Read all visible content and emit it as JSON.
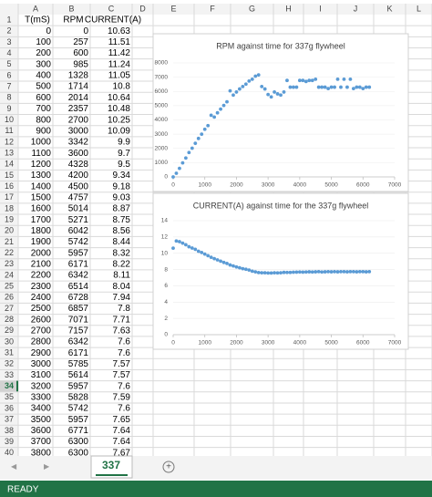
{
  "column_headers": [
    "A",
    "B",
    "C",
    "D",
    "E",
    "F",
    "G",
    "H",
    "I",
    "J",
    "K",
    "L"
  ],
  "row_numbers": [
    1,
    2,
    3,
    4,
    5,
    6,
    7,
    8,
    9,
    10,
    11,
    12,
    13,
    14,
    15,
    16,
    17,
    18,
    19,
    20,
    21,
    22,
    23,
    24,
    25,
    26,
    27,
    28,
    29,
    30,
    31,
    32,
    33,
    34,
    35,
    36,
    37,
    38,
    39,
    40
  ],
  "selected_row": 34,
  "table": {
    "header": [
      "T(mS)",
      "RPM",
      "CURRENT(A)"
    ],
    "rows": [
      [
        0,
        0,
        10.63
      ],
      [
        100,
        257,
        11.51
      ],
      [
        200,
        600,
        11.42
      ],
      [
        300,
        985,
        11.24
      ],
      [
        400,
        1328,
        11.05
      ],
      [
        500,
        1714,
        10.8
      ],
      [
        600,
        2014,
        10.64
      ],
      [
        700,
        2357,
        10.48
      ],
      [
        800,
        2700,
        10.25
      ],
      [
        900,
        3000,
        10.09
      ],
      [
        1000,
        3342,
        9.9
      ],
      [
        1100,
        3600,
        9.7
      ],
      [
        1200,
        4328,
        9.5
      ],
      [
        1300,
        4200,
        9.34
      ],
      [
        1400,
        4500,
        9.18
      ],
      [
        1500,
        4757,
        9.03
      ],
      [
        1600,
        5014,
        8.87
      ],
      [
        1700,
        5271,
        8.75
      ],
      [
        1800,
        6042,
        8.56
      ],
      [
        1900,
        5742,
        8.44
      ],
      [
        2000,
        5957,
        8.32
      ],
      [
        2100,
        6171,
        8.22
      ],
      [
        2200,
        6342,
        8.11
      ],
      [
        2300,
        6514,
        8.04
      ],
      [
        2400,
        6728,
        7.94
      ],
      [
        2500,
        6857,
        7.8
      ],
      [
        2600,
        7071,
        7.71
      ],
      [
        2700,
        7157,
        7.63
      ],
      [
        2800,
        6342,
        7.6
      ],
      [
        2900,
        6171,
        7.6
      ],
      [
        3000,
        5785,
        7.57
      ],
      [
        3100,
        5614,
        7.57
      ],
      [
        3200,
        5957,
        7.6
      ],
      [
        3300,
        5828,
        7.59
      ],
      [
        3400,
        5742,
        7.6
      ],
      [
        3500,
        5957,
        7.65
      ],
      [
        3600,
        6771,
        7.64
      ],
      [
        3700,
        6300,
        7.64
      ],
      [
        3800,
        6300,
        7.67
      ]
    ]
  },
  "chart_data": [
    {
      "type": "scatter",
      "title": "RPM against time for 337g flywheel",
      "color": "#5b9bd5",
      "x": [
        0,
        100,
        200,
        300,
        400,
        500,
        600,
        700,
        800,
        900,
        1000,
        1100,
        1200,
        1300,
        1400,
        1500,
        1600,
        1700,
        1800,
        1900,
        2000,
        2100,
        2200,
        2300,
        2400,
        2500,
        2600,
        2700,
        2800,
        2900,
        3000,
        3100,
        3200,
        3300,
        3400,
        3500,
        3600,
        3700,
        3800,
        3900,
        4000,
        4100,
        4200,
        4300,
        4400,
        4500,
        4600,
        4700,
        4800,
        4900,
        5000,
        5100,
        5200,
        5300,
        5400,
        5500,
        5600,
        5700,
        5800,
        5900,
        6000,
        6100,
        6200
      ],
      "values": [
        0,
        257,
        600,
        985,
        1328,
        1714,
        2014,
        2357,
        2700,
        3000,
        3342,
        3600,
        4328,
        4200,
        4500,
        4757,
        5014,
        5271,
        6042,
        5742,
        5957,
        6171,
        6342,
        6514,
        6728,
        6857,
        7071,
        7157,
        6342,
        6171,
        5785,
        5614,
        5957,
        5828,
        5742,
        5957,
        6771,
        6300,
        6300,
        6300,
        6771,
        6771,
        6700,
        6771,
        6771,
        6857,
        6300,
        6300,
        6300,
        6200,
        6300,
        6300,
        6857,
        6300,
        6857,
        6300,
        6857,
        6200,
        6300,
        6300,
        6200,
        6300,
        6300
      ],
      "xlim": [
        0,
        7000
      ],
      "xticks": [
        0,
        1000,
        2000,
        3000,
        4000,
        5000,
        6000,
        7000
      ],
      "ylim": [
        0,
        8000
      ],
      "yticks": [
        0,
        1000,
        2000,
        3000,
        4000,
        5000,
        6000,
        7000,
        8000
      ],
      "grid": true
    },
    {
      "type": "scatter",
      "title": "CURRENT(A) against time for the 337g flywheel",
      "color": "#5b9bd5",
      "x": [
        0,
        100,
        200,
        300,
        400,
        500,
        600,
        700,
        800,
        900,
        1000,
        1100,
        1200,
        1300,
        1400,
        1500,
        1600,
        1700,
        1800,
        1900,
        2000,
        2100,
        2200,
        2300,
        2400,
        2500,
        2600,
        2700,
        2800,
        2900,
        3000,
        3100,
        3200,
        3300,
        3400,
        3500,
        3600,
        3700,
        3800,
        3900,
        4000,
        4100,
        4200,
        4300,
        4400,
        4500,
        4600,
        4700,
        4800,
        4900,
        5000,
        5100,
        5200,
        5300,
        5400,
        5500,
        5600,
        5700,
        5800,
        5900,
        6000,
        6100,
        6200
      ],
      "values": [
        10.63,
        11.51,
        11.42,
        11.24,
        11.05,
        10.8,
        10.64,
        10.48,
        10.25,
        10.09,
        9.9,
        9.7,
        9.5,
        9.34,
        9.18,
        9.03,
        8.87,
        8.75,
        8.56,
        8.44,
        8.32,
        8.22,
        8.11,
        8.04,
        7.94,
        7.8,
        7.71,
        7.63,
        7.6,
        7.6,
        7.57,
        7.57,
        7.6,
        7.59,
        7.6,
        7.65,
        7.64,
        7.64,
        7.67,
        7.68,
        7.7,
        7.68,
        7.7,
        7.72,
        7.7,
        7.72,
        7.74,
        7.7,
        7.72,
        7.74,
        7.72,
        7.74,
        7.72,
        7.74,
        7.74,
        7.72,
        7.74,
        7.74,
        7.72,
        7.74,
        7.74,
        7.72,
        7.74
      ],
      "xlim": [
        0,
        7000
      ],
      "xticks": [
        0,
        1000,
        2000,
        3000,
        4000,
        5000,
        6000,
        7000
      ],
      "ylim": [
        0,
        14
      ],
      "yticks": [
        0,
        2,
        4,
        6,
        8,
        10,
        12,
        14
      ],
      "grid": true
    }
  ],
  "sheet_tab": "337",
  "status": "READY"
}
